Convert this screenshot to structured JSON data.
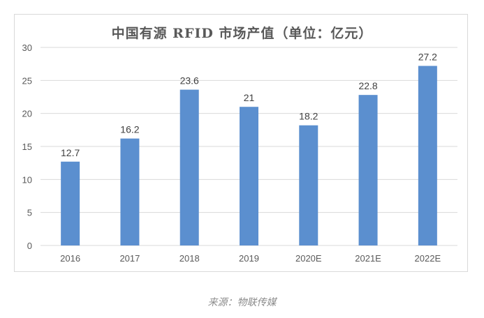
{
  "chart_data": {
    "type": "bar",
    "title": "中国有源 RFID 市场产值（单位：亿元）",
    "categories": [
      "2016",
      "2017",
      "2018",
      "2019",
      "2020E",
      "2021E",
      "2022E"
    ],
    "values": [
      12.7,
      16.2,
      23.6,
      21,
      18.2,
      22.8,
      27.2
    ],
    "value_labels": [
      "12.7",
      "16.2",
      "23.6",
      "21",
      "18.2",
      "22.8",
      "27.2"
    ],
    "ylim": [
      0,
      30
    ],
    "yticks": [
      0,
      5,
      10,
      15,
      20,
      25,
      30
    ],
    "grid": true,
    "legend": "none",
    "bar_color": "#5b8fcf",
    "grid_color": "#d9d9d9"
  },
  "source_text": "来源：物联传媒"
}
